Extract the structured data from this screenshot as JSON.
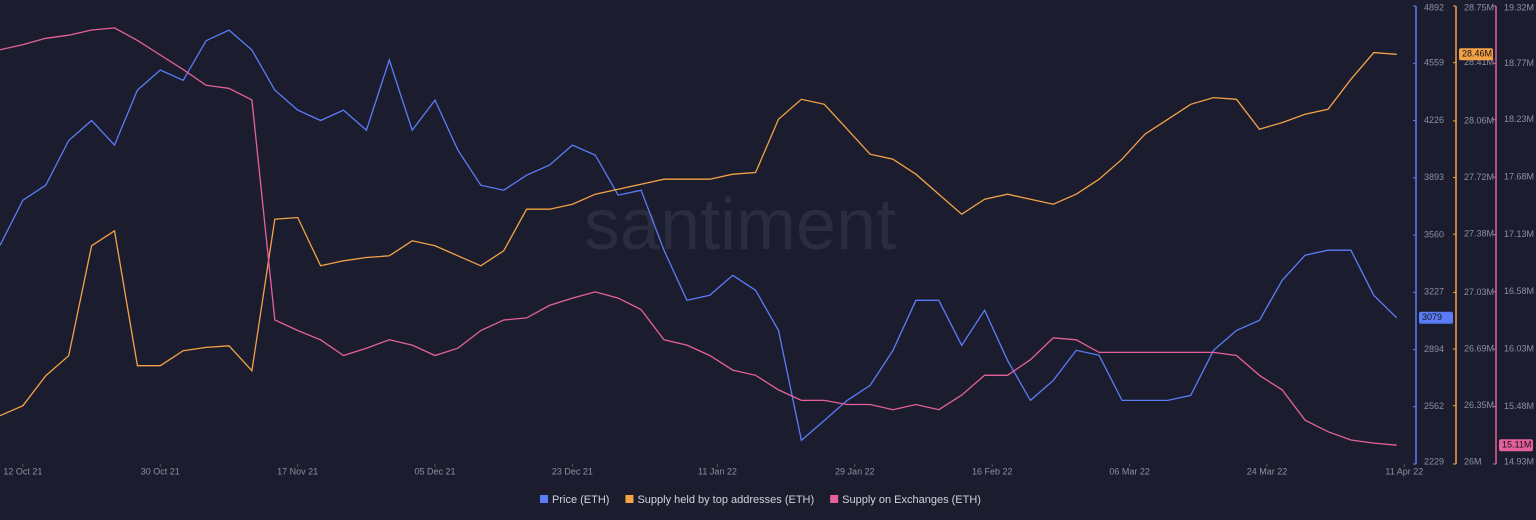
{
  "chart_data": {
    "type": "line",
    "watermark": "santiment",
    "x": [
      "2021-10-09",
      "2021-10-12",
      "2021-10-15",
      "2021-10-18",
      "2021-10-21",
      "2021-10-24",
      "2021-10-27",
      "2021-10-30",
      "2021-11-02",
      "2021-11-05",
      "2021-11-08",
      "2021-11-11",
      "2021-11-14",
      "2021-11-17",
      "2021-11-20",
      "2021-11-23",
      "2021-11-26",
      "2021-11-29",
      "2021-12-02",
      "2021-12-05",
      "2021-12-08",
      "2021-12-11",
      "2021-12-14",
      "2021-12-17",
      "2021-12-20",
      "2021-12-23",
      "2021-12-26",
      "2021-12-29",
      "2022-01-01",
      "2022-01-04",
      "2022-01-07",
      "2022-01-10",
      "2022-01-13",
      "2022-01-16",
      "2022-01-19",
      "2022-01-22",
      "2022-01-25",
      "2022-01-28",
      "2022-01-31",
      "2022-02-03",
      "2022-02-06",
      "2022-02-09",
      "2022-02-12",
      "2022-02-15",
      "2022-02-18",
      "2022-02-21",
      "2022-02-24",
      "2022-02-27",
      "2022-03-02",
      "2022-03-05",
      "2022-03-08",
      "2022-03-11",
      "2022-03-14",
      "2022-03-17",
      "2022-03-20",
      "2022-03-23",
      "2022-03-26",
      "2022-03-29",
      "2022-04-01",
      "2022-04-04",
      "2022-04-07",
      "2022-04-10"
    ],
    "xlim": [
      "2021-10-09",
      "2022-04-12"
    ],
    "xticks": [
      {
        "value": "2021-10-12",
        "label": "12 Oct 21"
      },
      {
        "value": "2021-10-30",
        "label": "30 Oct 21"
      },
      {
        "value": "2021-11-17",
        "label": "17 Nov 21"
      },
      {
        "value": "2021-12-05",
        "label": "05 Dec 21"
      },
      {
        "value": "2021-12-23",
        "label": "23 Dec 21"
      },
      {
        "value": "2022-01-11",
        "label": "11 Jan 22"
      },
      {
        "value": "2022-01-29",
        "label": "29 Jan 22"
      },
      {
        "value": "2022-02-16",
        "label": "16 Feb 22"
      },
      {
        "value": "2022-03-06",
        "label": "06 Mar 22"
      },
      {
        "value": "2022-03-24",
        "label": "24 Mar 22"
      },
      {
        "value": "2022-04-11",
        "label": "11 Apr 22"
      }
    ],
    "ylim": [
      2229,
      4892
    ],
    "yticks": [
      2229,
      2562,
      2894,
      3227,
      3560,
      3893,
      4226,
      4559,
      4892
    ],
    "y2lim": [
      26000000,
      28750000
    ],
    "y2ticks": [
      {
        "value": 26000000,
        "label": "26M"
      },
      {
        "value": 26350000,
        "label": "26.35M"
      },
      {
        "value": 26690000,
        "label": "26.69M"
      },
      {
        "value": 27030000,
        "label": "27.03M"
      },
      {
        "value": 27380000,
        "label": "27.38M"
      },
      {
        "value": 27720000,
        "label": "27.72M"
      },
      {
        "value": 28060000,
        "label": "28.06M"
      },
      {
        "value": 28410000,
        "label": "28.41M"
      },
      {
        "value": 28750000,
        "label": "28.75M"
      }
    ],
    "y3lim": [
      14930000,
      19320000
    ],
    "y3ticks": [
      {
        "value": 14930000,
        "label": "14.93M"
      },
      {
        "value": 15480000,
        "label": "15.48M"
      },
      {
        "value": 16030000,
        "label": "16.03M"
      },
      {
        "value": 16580000,
        "label": "16.58M"
      },
      {
        "value": 17130000,
        "label": "17.13M"
      },
      {
        "value": 17680000,
        "label": "17.68M"
      },
      {
        "value": 18230000,
        "label": "18.23M"
      },
      {
        "value": 18770000,
        "label": "18.77M"
      },
      {
        "value": 19320000,
        "label": "19.32M"
      }
    ],
    "series": [
      {
        "name": "Price (ETH)",
        "color": "#5b7cf7",
        "axis": "y",
        "end_label": "3079",
        "values": [
          3500,
          3763,
          3850,
          4110,
          4226,
          4083,
          4403,
          4520,
          4460,
          4690,
          4752,
          4636,
          4403,
          4287,
          4226,
          4287,
          4170,
          4578,
          4170,
          4345,
          4054,
          3850,
          3821,
          3908,
          3967,
          4083,
          4025,
          3792,
          3821,
          3472,
          3181,
          3210,
          3326,
          3239,
          3006,
          2366,
          2482,
          2599,
          2686,
          2890,
          3181,
          3181,
          2919,
          3123,
          2832,
          2599,
          2715,
          2890,
          2861,
          2599,
          2599,
          2599,
          2628,
          2890,
          3006,
          3064,
          3297,
          3443,
          3472,
          3472,
          3210,
          3079
        ]
      },
      {
        "name": "Supply held by top addresses (ETH)",
        "color": "#f3a246",
        "axis": "y2",
        "end_label": "28.46M",
        "values": [
          26290000,
          26350000,
          26530000,
          26650000,
          27310000,
          27400000,
          26590000,
          26590000,
          26680000,
          26700000,
          26710000,
          26560000,
          27470000,
          27480000,
          27190000,
          27220000,
          27240000,
          27250000,
          27340000,
          27310000,
          27250000,
          27190000,
          27280000,
          27530000,
          27530000,
          27560000,
          27620000,
          27650000,
          27680000,
          27710000,
          27710000,
          27710000,
          27740000,
          27750000,
          28070000,
          28190000,
          28160000,
          28010000,
          27860000,
          27830000,
          27740000,
          27620000,
          27500000,
          27590000,
          27620000,
          27590000,
          27560000,
          27620000,
          27710000,
          27830000,
          27980000,
          28070000,
          28160000,
          28200000,
          28190000,
          28010000,
          28050000,
          28100000,
          28130000,
          28310000,
          28470000,
          28460000
        ]
      },
      {
        "name": "Supply on Exchanges (ETH)",
        "color": "#e5609d",
        "axis": "y3",
        "end_label": "15.11M",
        "values": [
          18900000,
          18950000,
          19010000,
          19040000,
          19090000,
          19110000,
          18990000,
          18850000,
          18710000,
          18560000,
          18530000,
          18420000,
          16310000,
          16210000,
          16120000,
          15970000,
          16040000,
          16120000,
          16070000,
          15970000,
          16040000,
          16210000,
          16310000,
          16330000,
          16450000,
          16520000,
          16580000,
          16520000,
          16410000,
          16120000,
          16070000,
          15970000,
          15830000,
          15780000,
          15640000,
          15540000,
          15540000,
          15500000,
          15500000,
          15450000,
          15500000,
          15450000,
          15590000,
          15780000,
          15780000,
          15930000,
          16140000,
          16120000,
          16000000,
          16000000,
          16000000,
          16000000,
          16000000,
          16000000,
          15970000,
          15780000,
          15640000,
          15350000,
          15240000,
          15160000,
          15130000,
          15110000
        ]
      }
    ]
  }
}
